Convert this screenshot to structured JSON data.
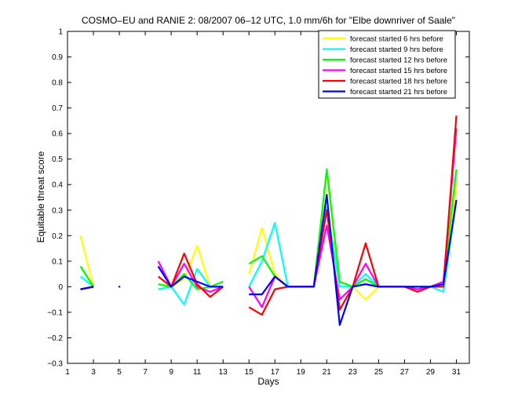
{
  "chart_data": {
    "type": "line",
    "title": "COSMO–EU and RANIE 2: 08/2007 06–12 UTC, 1.0 mm/6h for \"Elbe downriver of Saale\"",
    "xlabel": "Days",
    "ylabel": "Equitable threat score",
    "xlim": [
      1,
      32
    ],
    "ylim": [
      -0.3,
      1
    ],
    "xticks": [
      1,
      3,
      5,
      7,
      9,
      11,
      13,
      15,
      17,
      19,
      21,
      23,
      25,
      27,
      29,
      31
    ],
    "yticks": [
      -0.3,
      -0.2,
      -0.1,
      0,
      0.1,
      0.2,
      0.3,
      0.4,
      0.5,
      0.6,
      0.7,
      0.8,
      0.9,
      1
    ],
    "ytick_labels": [
      "−0.3",
      "−0.2",
      "−0.1",
      "0",
      "0.1",
      "0.2",
      "0.3",
      "0.4",
      "0.5",
      "0.6",
      "0.7",
      "0.8",
      "0.9",
      "1"
    ],
    "grid": false,
    "legend_position": "top-right",
    "x": [
      1,
      2,
      3,
      4,
      5,
      6,
      7,
      8,
      9,
      10,
      11,
      12,
      13,
      14,
      15,
      16,
      17,
      18,
      19,
      20,
      21,
      22,
      23,
      24,
      25,
      26,
      27,
      28,
      29,
      30,
      31
    ],
    "series": [
      {
        "name": "forecast started 6 hrs before",
        "color": "#ffff00",
        "values": [
          null,
          0.2,
          0.0,
          null,
          null,
          null,
          null,
          -0.01,
          0.0,
          0.03,
          0.16,
          0.0,
          0.0,
          null,
          0.05,
          0.23,
          0.05,
          0.0,
          0.0,
          0.0,
          0.45,
          0.0,
          0.0,
          -0.05,
          0.0,
          0.0,
          0.0,
          0.0,
          0.0,
          0.01,
          0.41
        ]
      },
      {
        "name": "forecast started 9 hrs before",
        "color": "#00ffff",
        "values": [
          null,
          0.04,
          0.0,
          null,
          null,
          null,
          null,
          -0.01,
          0.0,
          -0.07,
          0.07,
          0.0,
          0.0,
          null,
          0.0,
          0.1,
          0.25,
          0.0,
          0.0,
          0.0,
          0.31,
          0.0,
          0.0,
          0.05,
          0.0,
          0.0,
          0.0,
          0.0,
          0.0,
          -0.02,
          0.34
        ]
      },
      {
        "name": "forecast started 12 hrs before",
        "color": "#00ff00",
        "values": [
          null,
          0.08,
          0.0,
          null,
          null,
          null,
          null,
          0.01,
          0.0,
          0.05,
          -0.01,
          0.0,
          0.02,
          null,
          0.09,
          0.12,
          0.04,
          0.0,
          0.0,
          0.0,
          0.46,
          0.02,
          0.0,
          0.03,
          0.0,
          0.0,
          0.0,
          0.0,
          0.0,
          0.02,
          0.46
        ]
      },
      {
        "name": "forecast started 15 hrs before",
        "color": "#ff00ff",
        "values": [
          null,
          -0.01,
          0.0,
          null,
          null,
          null,
          null,
          0.1,
          0.0,
          0.09,
          0.0,
          -0.02,
          0.0,
          null,
          0.0,
          -0.08,
          0.04,
          0.0,
          0.0,
          0.0,
          0.24,
          -0.05,
          0.0,
          0.09,
          0.0,
          0.0,
          0.0,
          -0.01,
          0.0,
          0.02,
          0.62
        ]
      },
      {
        "name": "forecast started 18 hrs before",
        "color": "#ff0000",
        "values": [
          null,
          -0.01,
          0.0,
          null,
          null,
          null,
          null,
          0.04,
          0.0,
          0.13,
          0.01,
          -0.04,
          0.0,
          null,
          -0.08,
          -0.11,
          -0.01,
          0.0,
          0.0,
          0.0,
          0.3,
          -0.09,
          0.0,
          0.17,
          0.0,
          0.0,
          0.0,
          -0.02,
          0.0,
          0.0,
          0.67
        ]
      },
      {
        "name": "forecast started 21 hrs before",
        "color": "#0000ff",
        "values": [
          null,
          -0.01,
          0.0,
          null,
          0.0,
          null,
          null,
          0.08,
          0.0,
          0.04,
          0.02,
          0.0,
          0.0,
          null,
          -0.03,
          -0.03,
          0.04,
          0.0,
          0.0,
          0.0,
          0.36,
          -0.15,
          0.0,
          0.01,
          0.0,
          0.0,
          0.0,
          0.0,
          0.0,
          0.01,
          0.34
        ]
      }
    ]
  }
}
